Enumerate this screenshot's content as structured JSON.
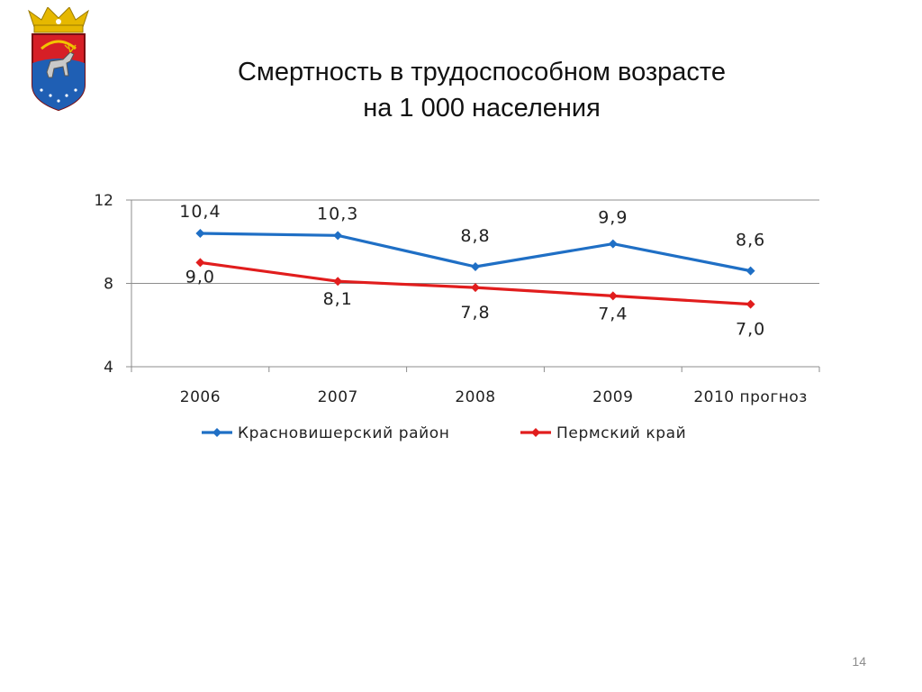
{
  "slide": {
    "title_line1": "Смертность в трудоспособном возрасте",
    "title_line2": "на 1 000 населения",
    "page_number": "14"
  },
  "coat_of_arms": {
    "icon": "coat-of-arms-deer-icon"
  },
  "chart_data": {
    "type": "line",
    "categories": [
      "2006",
      "2007",
      "2008",
      "2009",
      "2010 прогноз"
    ],
    "ylim": [
      4,
      12
    ],
    "yticks": [
      4,
      8,
      12
    ],
    "grid": true,
    "legend": "bottom",
    "series": [
      {
        "name": "Красновишерский район",
        "values": [
          10.4,
          10.3,
          8.8,
          9.9,
          8.6
        ],
        "labels": [
          "10,4",
          "10,3",
          "8,8",
          "9,9",
          "8,6"
        ],
        "color": "#1f6fc5"
      },
      {
        "name": "Пермский край",
        "values": [
          9.0,
          8.1,
          7.8,
          7.4,
          7.0
        ],
        "labels": [
          "9,0",
          "8,1",
          "7,8",
          "7,4",
          "7,0"
        ],
        "color": "#e11d1d"
      }
    ]
  }
}
